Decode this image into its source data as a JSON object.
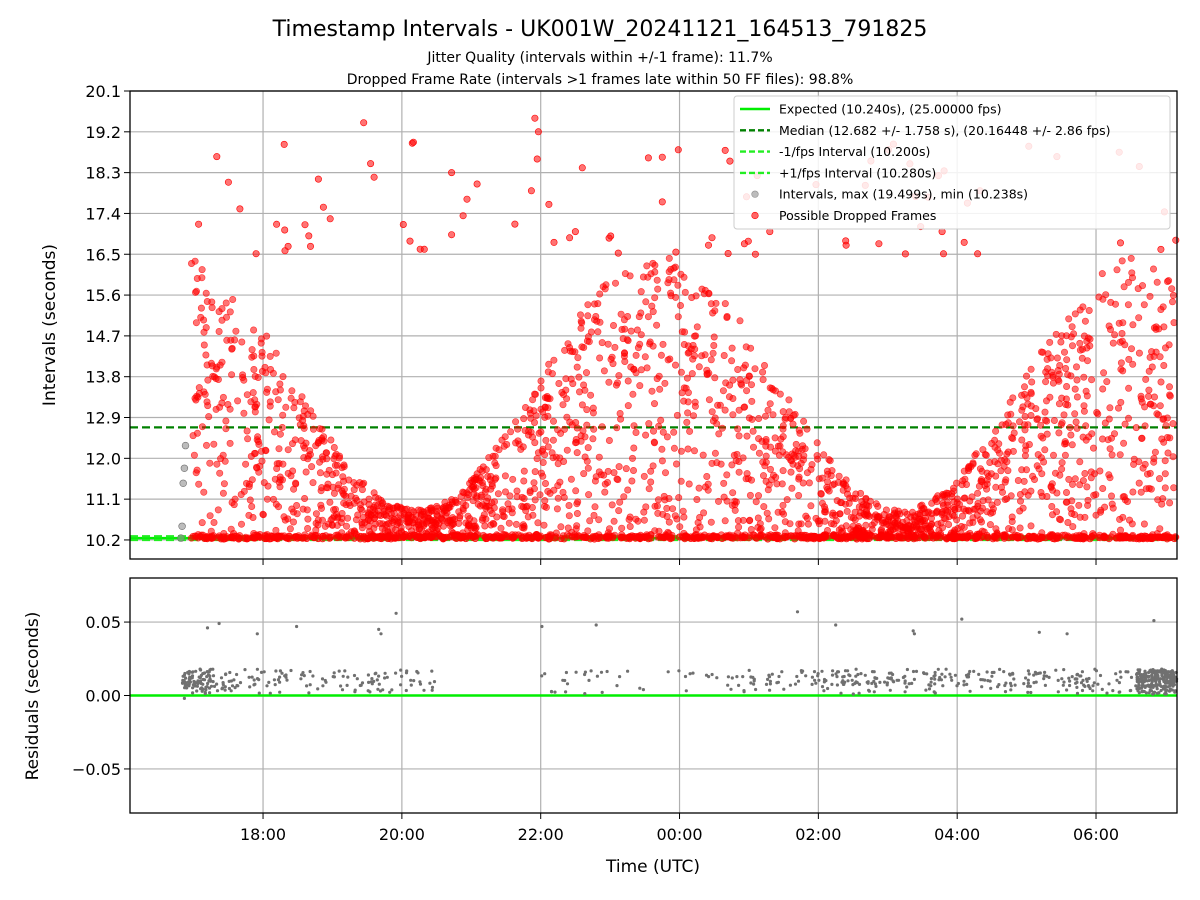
{
  "figure": {
    "title": "Timestamp Intervals - UK001W_20241121_164513_791825",
    "subtitle_line1": "Jitter Quality (intervals within +/-1 frame): 11.7%",
    "subtitle_line2": "Dropped Frame Rate (intervals >1 frames late within 50 FF files): 98.8%"
  },
  "chart_data": [
    {
      "type": "scatter",
      "panel": "top",
      "ylabel": "Intervals (seconds)",
      "xlabel": "",
      "ylim": [
        9.78,
        20.1
      ],
      "xlim_hours_utc": [
        "16:05",
        "07:10"
      ],
      "y_ticks": [
        "10.2",
        "11.1",
        "12.0",
        "12.9",
        "13.8",
        "14.7",
        "15.6",
        "16.5",
        "17.4",
        "18.3",
        "19.2",
        "20.1"
      ],
      "x_ticks": [
        "18:00",
        "20:00",
        "22:00",
        "00:00",
        "02:00",
        "04:00",
        "06:00"
      ],
      "grid": true,
      "legend_position": "top-right",
      "lines": [
        {
          "name": "Expected (10.240s), (25.00000 fps)",
          "y": 10.24,
          "style": "solid",
          "color": "#00ee00"
        },
        {
          "name": "Median (12.682 +/- 1.758 s), (20.16448 +/- 2.86 fps)",
          "y": 12.682,
          "style": "dashed",
          "color": "#008000"
        },
        {
          "name": "-1/fps Interval (10.200s)",
          "y": 10.2,
          "style": "dashed",
          "color": "#22ee22"
        },
        {
          "name": "+1/fps Interval (10.280s)",
          "y": 10.28,
          "style": "dashed",
          "color": "#22ee22"
        }
      ],
      "series": [
        {
          "name": "Intervals, max (19.499s), min (10.238s)",
          "color": "#909090",
          "sample_points": [
            [
              "16:49",
              10.24
            ],
            [
              "16:50",
              10.5
            ],
            [
              "16:51",
              11.45
            ],
            [
              "16:52",
              11.78
            ],
            [
              "16:53",
              12.28
            ]
          ]
        },
        {
          "name": "Possible Dropped Frames",
          "color": "#ff0000",
          "count_estimate": 3000,
          "band_low": 10.24,
          "band_high": 16.5,
          "outliers": [
            [
              "19:27",
              19.4
            ],
            [
              "19:33",
              18.5
            ],
            [
              "19:36",
              18.2
            ],
            [
              "20:09",
              18.95
            ],
            [
              "20:10",
              18.97
            ],
            [
              "20:43",
              18.3
            ],
            [
              "21:55",
              19.5
            ],
            [
              "21:58",
              19.2
            ],
            [
              "21:57",
              18.6
            ],
            [
              "17:40",
              17.5
            ],
            [
              "22:30",
              17.0
            ],
            [
              "00:25",
              16.7
            ],
            [
              "01:18",
              17.0
            ],
            [
              "02:24",
              16.7
            ],
            [
              "03:47",
              17.0
            ],
            [
              "06:20",
              18.75
            ],
            [
              "21:05",
              18.05
            ],
            [
              "21:52",
              17.9
            ]
          ]
        }
      ]
    },
    {
      "type": "scatter",
      "panel": "bottom",
      "ylabel": "Residuals (seconds)",
      "xlabel": "Time (UTC)",
      "ylim": [
        -0.08,
        0.08
      ],
      "y_ticks": [
        "−0.05",
        "0.00",
        "0.05"
      ],
      "x_ticks": [
        "18:00",
        "20:00",
        "22:00",
        "00:00",
        "02:00",
        "04:00",
        "06:00"
      ],
      "grid": true,
      "lines": [
        {
          "name": "zero",
          "y": 0.0,
          "style": "solid",
          "color": "#00ee00"
        }
      ],
      "series": [
        {
          "name": "residuals",
          "color": "#707070",
          "range": [
            -0.002,
            0.056
          ]
        }
      ]
    }
  ]
}
